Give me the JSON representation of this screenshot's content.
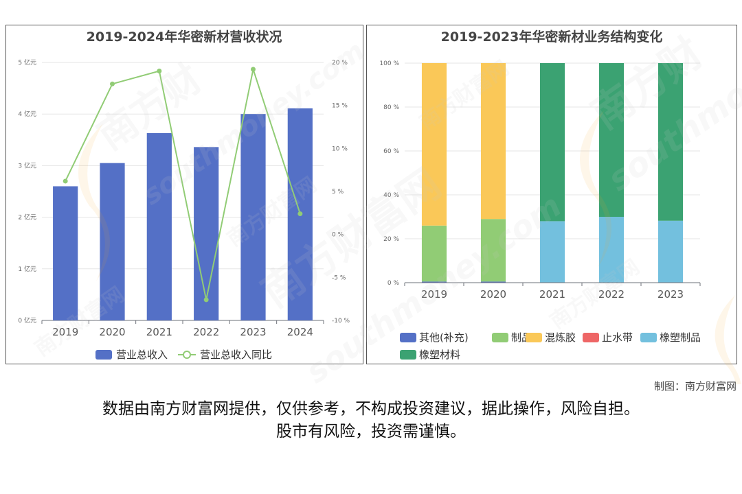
{
  "chart_data": [
    {
      "type": "bar+line",
      "title": "2019-2024年华密新材营收状况",
      "categories": [
        "2019",
        "2020",
        "2021",
        "2022",
        "2023",
        "2024"
      ],
      "series": [
        {
          "name": "营业总收入",
          "type": "bar",
          "axis": "left",
          "values": [
            2.6,
            3.05,
            3.63,
            3.36,
            4.0,
            4.11
          ]
        },
        {
          "name": "营业总收入同比",
          "type": "line",
          "axis": "right",
          "values": [
            6.2,
            17.5,
            19.0,
            -7.6,
            19.2,
            2.4
          ]
        }
      ],
      "y_left": {
        "min": 0,
        "max": 5,
        "ticks": [
          0,
          1,
          2,
          3,
          4,
          5
        ],
        "unit": "亿元"
      },
      "y_right": {
        "min": -10,
        "max": 20,
        "ticks": [
          -10,
          -5,
          0,
          5,
          10,
          15,
          20
        ],
        "unit": "%"
      },
      "colors": {
        "bar": "#5470c6",
        "line": "#91cc75"
      },
      "grid": true,
      "legend": "bottom"
    },
    {
      "type": "stacked-bar",
      "title": "2019-2023年华密新材业务结构变化",
      "categories": [
        "2019",
        "2020",
        "2021",
        "2022",
        "2023"
      ],
      "series": [
        {
          "name": "其他(补充)",
          "color": "#5470c6",
          "values": [
            0.5,
            0.5,
            0,
            0,
            0
          ]
        },
        {
          "name": "制品",
          "color": "#91cc75",
          "values": [
            25.5,
            28.5,
            0,
            0,
            0
          ]
        },
        {
          "name": "混炼胶",
          "color": "#fac858",
          "values": [
            74,
            71,
            0,
            0,
            0
          ]
        },
        {
          "name": "止水带",
          "color": "#ee6666",
          "values": [
            0,
            0,
            0,
            0,
            0
          ]
        },
        {
          "name": "橡塑制品",
          "color": "#73c0de",
          "values": [
            0,
            0,
            28,
            30,
            28.2
          ]
        },
        {
          "name": "橡塑材料",
          "color": "#3ba272",
          "values": [
            0,
            0,
            72,
            70,
            71.8
          ]
        }
      ],
      "y": {
        "min": 0,
        "max": 100,
        "ticks": [
          0,
          20,
          40,
          60,
          80,
          100
        ],
        "unit": "%"
      },
      "grid": true,
      "legend": "bottom"
    }
  ],
  "footer": {
    "credit": "制图：南方财富网",
    "disclaimer_line1": "数据由南方财富网提供，仅供参考，不构成投资建议，据此操作，风险自担。",
    "disclaimer_line2": "股市有风险，投资需谨慎。"
  },
  "watermark": {
    "brand_cn": "南方财富网",
    "brand_en": "southmoney.com"
  }
}
